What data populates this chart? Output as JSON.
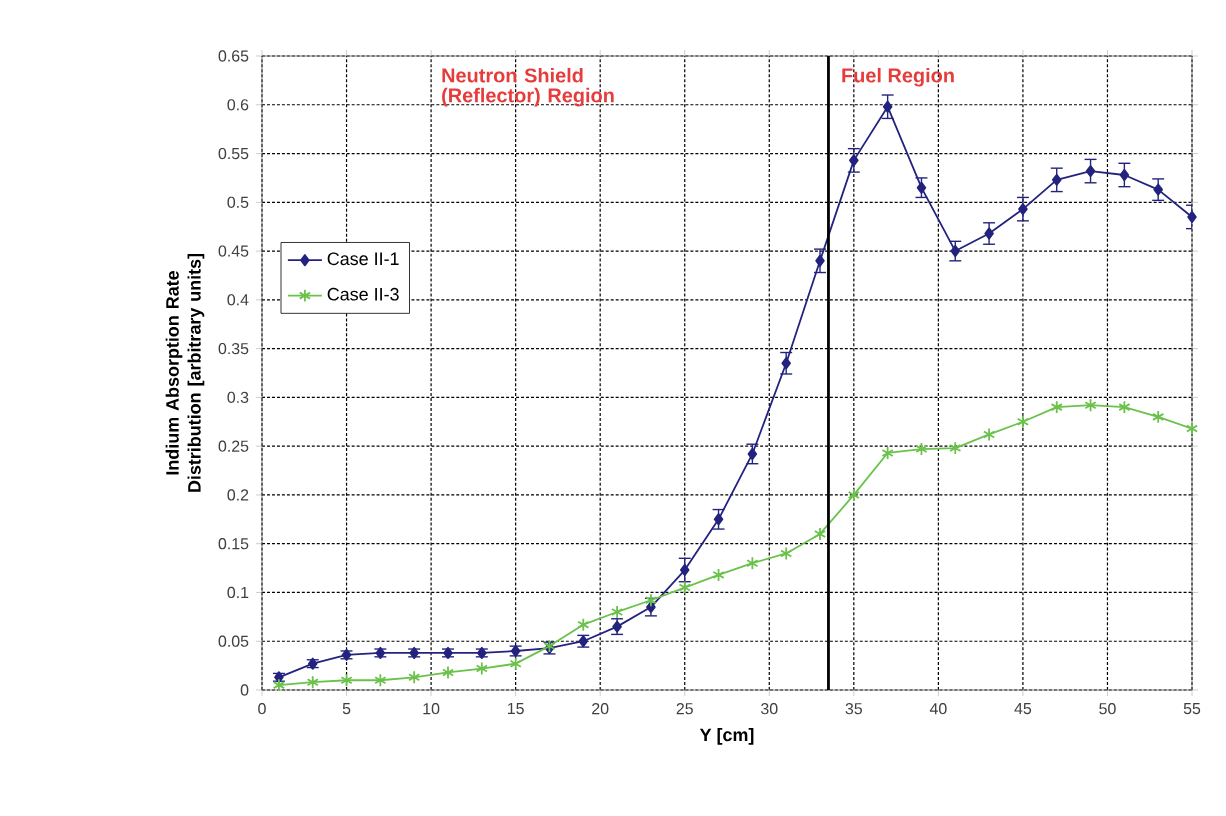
{
  "chart_data": {
    "type": "line",
    "xlabel": "Y [cm]",
    "ylabel": "Indium Absorption  Rate Distribution [arbitrary units]",
    "x": [
      1,
      3,
      5,
      7,
      9,
      11,
      13,
      15,
      17,
      19,
      21,
      23,
      25,
      27,
      29,
      31,
      33,
      35,
      37,
      39,
      41,
      43,
      45,
      47,
      49,
      51,
      53,
      55
    ],
    "series": [
      {
        "name": "Case II-1",
        "color": "#23237f",
        "marker": "diamond",
        "values": [
          0.013,
          0.027,
          0.036,
          0.038,
          0.038,
          0.038,
          0.038,
          0.04,
          0.043,
          0.05,
          0.065,
          0.085,
          0.123,
          0.175,
          0.242,
          0.335,
          0.44,
          0.543,
          0.598,
          0.515,
          0.45,
          0.468,
          0.493,
          0.523,
          0.532,
          0.528,
          0.513,
          0.485
        ],
        "errors": [
          0.004,
          0.004,
          0.004,
          0.004,
          0.004,
          0.004,
          0.004,
          0.005,
          0.006,
          0.006,
          0.008,
          0.009,
          0.012,
          0.01,
          0.01,
          0.011,
          0.012,
          0.012,
          0.012,
          0.01,
          0.01,
          0.011,
          0.012,
          0.012,
          0.012,
          0.012,
          0.011,
          0.012
        ]
      },
      {
        "name": "Case II-3",
        "color": "#6ac24a",
        "marker": "cross",
        "values": [
          0.005,
          0.008,
          0.01,
          0.01,
          0.013,
          0.018,
          0.022,
          0.027,
          0.045,
          0.067,
          0.08,
          0.092,
          0.105,
          0.118,
          0.13,
          0.14,
          0.16,
          0.2,
          0.243,
          0.247,
          0.248,
          0.262,
          0.275,
          0.29,
          0.292,
          0.29,
          0.28,
          0.268
        ]
      }
    ],
    "xlim": [
      0,
      55
    ],
    "xticks": [
      0,
      5,
      10,
      15,
      20,
      25,
      30,
      35,
      40,
      45,
      50,
      55
    ],
    "ylim": [
      0,
      0.65
    ],
    "yticks": [
      0,
      0.05,
      0.1,
      0.15,
      0.2,
      0.25,
      0.3,
      0.35,
      0.4,
      0.45,
      0.5,
      0.55,
      0.6,
      0.65
    ],
    "ref_lines": [
      {
        "axis": "x",
        "value": 33.5,
        "color": "#000000"
      }
    ],
    "annotations": [
      "Neutron Shield (Reflector) Region",
      "Fuel Region"
    ],
    "grid": true,
    "legend": "left",
    "line_style": "solid"
  }
}
